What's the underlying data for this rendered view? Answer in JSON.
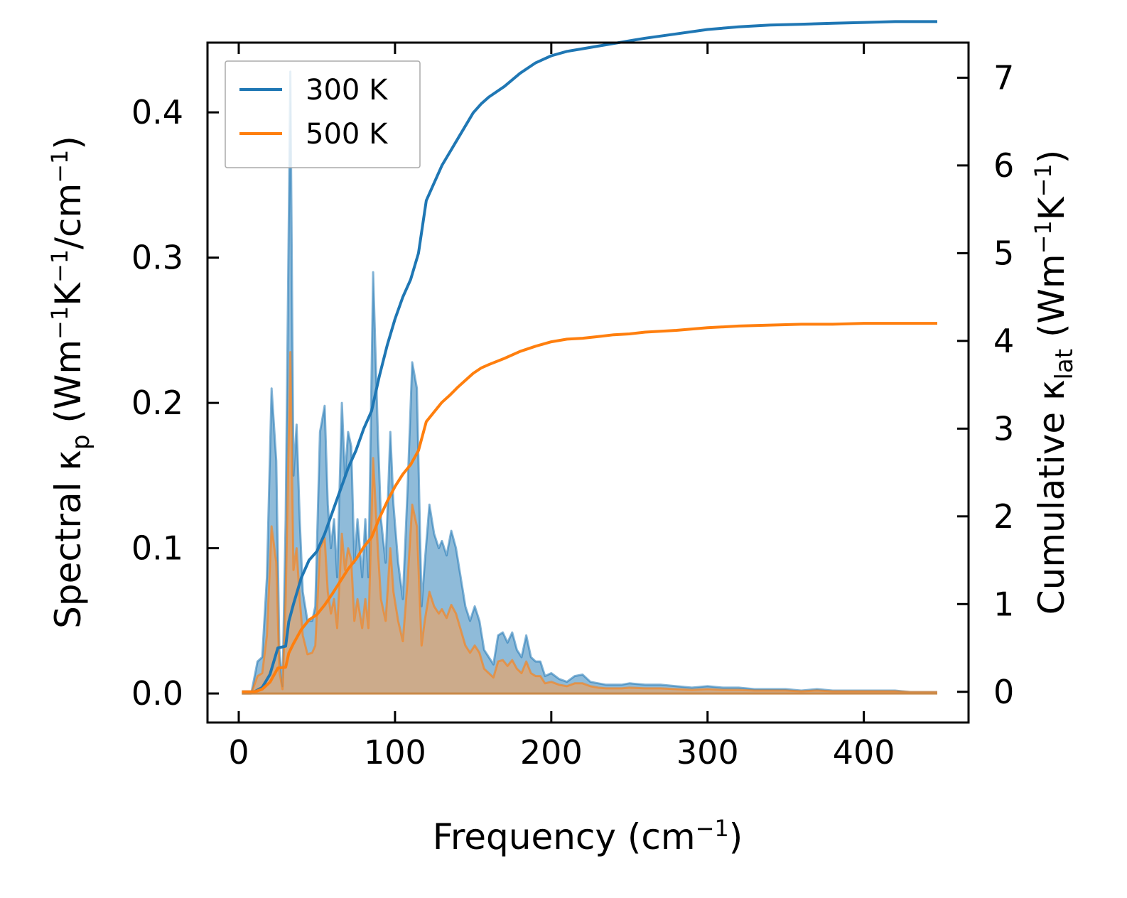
{
  "chart_data": {
    "type": "line",
    "title": "",
    "xlabel": {
      "main": "Frequency (cm",
      "sup": "−1",
      "close": ")"
    },
    "ylabel_left": {
      "pre": "Spectral κ",
      "sub": "p",
      "open": " (Wm",
      "sup1": "−1",
      "mid": "K",
      "sup2": "−1",
      "mid2": "/cm",
      "sup3": "−1",
      "close": ")"
    },
    "ylabel_right": {
      "pre": "Cumulative κ",
      "sub": "lat",
      "open": " (Wm",
      "sup1": "−1",
      "mid": "K",
      "sup2": "−1",
      "close": ")"
    },
    "xlim": [
      -20,
      467
    ],
    "ylim_left": [
      -0.02,
      0.448
    ],
    "ylim_right": [
      -0.35,
      7.4
    ],
    "xticks": [
      0,
      100,
      200,
      300,
      400
    ],
    "xtick_labels": [
      "0",
      "100",
      "200",
      "300",
      "400"
    ],
    "yticks_left": [
      0.0,
      0.1,
      0.2,
      0.3,
      0.4
    ],
    "ytick_labels_left": [
      "0.0",
      "0.1",
      "0.2",
      "0.3",
      "0.4"
    ],
    "yticks_right": [
      0,
      1,
      2,
      3,
      4,
      5,
      6,
      7
    ],
    "ytick_labels_right": [
      "0",
      "1",
      "2",
      "3",
      "4",
      "5",
      "6",
      "7"
    ],
    "legend": {
      "position": "top-left",
      "entries": [
        "300 K",
        "500 K"
      ]
    },
    "colors": {
      "300 K": "#1f77b4",
      "500 K": "#ff7f0e",
      "fill_300": "#1f77b4",
      "fill_500": "#ff9f4a"
    },
    "spectral": {
      "300 K": {
        "x": [
          2,
          8,
          12,
          15,
          18,
          21,
          24,
          26,
          28,
          30,
          33,
          35,
          37,
          39,
          41,
          44,
          47,
          49,
          52,
          55,
          57,
          59,
          61,
          63,
          66,
          68,
          70,
          72,
          74,
          76,
          79,
          81,
          83,
          86,
          89,
          91,
          94,
          97,
          99,
          102,
          105,
          108,
          111,
          114,
          117,
          119,
          122,
          125,
          128,
          130,
          133,
          136,
          139,
          142,
          145,
          148,
          151,
          154,
          157,
          160,
          163,
          166,
          169,
          172,
          175,
          178,
          181,
          184,
          187,
          190,
          193,
          196,
          200,
          205,
          210,
          215,
          220,
          225,
          230,
          235,
          240,
          245,
          250,
          260,
          270,
          280,
          290,
          300,
          310,
          320,
          330,
          340,
          350,
          360,
          370,
          380,
          390,
          400,
          410,
          420,
          430,
          440,
          447
        ],
        "values": [
          0,
          0,
          0.022,
          0.025,
          0.08,
          0.21,
          0.16,
          0.03,
          0.005,
          0.12,
          0.428,
          0.15,
          0.185,
          0.12,
          0.07,
          0.05,
          0.05,
          0.06,
          0.18,
          0.198,
          0.13,
          0.1,
          0.12,
          0.08,
          0.2,
          0.15,
          0.18,
          0.17,
          0.09,
          0.12,
          0.08,
          0.12,
          0.08,
          0.29,
          0.18,
          0.12,
          0.09,
          0.18,
          0.13,
          0.09,
          0.065,
          0.14,
          0.228,
          0.21,
          0.06,
          0.09,
          0.13,
          0.11,
          0.1,
          0.105,
          0.095,
          0.112,
          0.1,
          0.08,
          0.06,
          0.05,
          0.06,
          0.05,
          0.03,
          0.025,
          0.02,
          0.04,
          0.042,
          0.035,
          0.042,
          0.03,
          0.025,
          0.04,
          0.025,
          0.022,
          0.022,
          0.012,
          0.014,
          0.01,
          0.008,
          0.012,
          0.013,
          0.008,
          0.007,
          0.006,
          0.006,
          0.006,
          0.007,
          0.006,
          0.006,
          0.005,
          0.004,
          0.005,
          0.004,
          0.004,
          0.003,
          0.003,
          0.003,
          0.002,
          0.003,
          0.002,
          0.002,
          0.002,
          0.002,
          0.002,
          0.001,
          0.001,
          0.001
        ]
      },
      "500 K": {
        "x": [
          2,
          8,
          12,
          15,
          18,
          21,
          24,
          26,
          28,
          30,
          33,
          35,
          37,
          39,
          41,
          44,
          47,
          49,
          52,
          55,
          57,
          59,
          61,
          63,
          66,
          68,
          70,
          72,
          74,
          76,
          79,
          81,
          83,
          86,
          89,
          91,
          94,
          97,
          99,
          102,
          105,
          108,
          111,
          114,
          117,
          119,
          122,
          125,
          128,
          130,
          133,
          136,
          139,
          142,
          145,
          148,
          151,
          154,
          157,
          160,
          163,
          166,
          169,
          172,
          175,
          178,
          181,
          184,
          187,
          190,
          193,
          196,
          200,
          205,
          210,
          215,
          220,
          225,
          230,
          235,
          240,
          245,
          250,
          260,
          270,
          280,
          290,
          300,
          310,
          320,
          330,
          340,
          350,
          360,
          370,
          380,
          390,
          400,
          410,
          420,
          430,
          440,
          447
        ],
        "values": [
          0,
          0,
          0.012,
          0.014,
          0.04,
          0.115,
          0.09,
          0.015,
          0.003,
          0.065,
          0.235,
          0.085,
          0.1,
          0.065,
          0.04,
          0.027,
          0.028,
          0.033,
          0.1,
          0.107,
          0.07,
          0.055,
          0.065,
          0.045,
          0.11,
          0.085,
          0.1,
          0.092,
          0.05,
          0.065,
          0.045,
          0.065,
          0.045,
          0.162,
          0.1,
          0.065,
          0.05,
          0.1,
          0.07,
          0.05,
          0.036,
          0.077,
          0.13,
          0.115,
          0.033,
          0.05,
          0.07,
          0.06,
          0.055,
          0.058,
          0.052,
          0.061,
          0.055,
          0.044,
          0.033,
          0.028,
          0.033,
          0.028,
          0.017,
          0.014,
          0.011,
          0.022,
          0.023,
          0.019,
          0.023,
          0.017,
          0.014,
          0.022,
          0.014,
          0.012,
          0.012,
          0.007,
          0.008,
          0.006,
          0.005,
          0.007,
          0.007,
          0.005,
          0.004,
          0.0035,
          0.0035,
          0.0035,
          0.004,
          0.0035,
          0.0035,
          0.003,
          0.0025,
          0.003,
          0.0025,
          0.0025,
          0.002,
          0.002,
          0.002,
          0.0015,
          0.002,
          0.0015,
          0.0015,
          0.0015,
          0.0015,
          0.0015,
          0.001,
          0.001,
          0.001
        ]
      }
    },
    "cumulative": {
      "300 K": {
        "x": [
          2,
          10,
          15,
          20,
          25,
          30,
          32,
          35,
          40,
          45,
          50,
          55,
          60,
          65,
          70,
          75,
          80,
          85,
          90,
          95,
          100,
          105,
          110,
          115,
          120,
          125,
          130,
          135,
          140,
          145,
          150,
          155,
          160,
          170,
          180,
          190,
          200,
          210,
          220,
          230,
          240,
          250,
          260,
          280,
          300,
          320,
          340,
          360,
          380,
          400,
          420,
          447
        ],
        "values": [
          0,
          0,
          0.05,
          0.2,
          0.5,
          0.52,
          0.8,
          1.0,
          1.3,
          1.5,
          1.6,
          1.8,
          2.05,
          2.3,
          2.55,
          2.75,
          3.0,
          3.2,
          3.6,
          3.95,
          4.25,
          4.5,
          4.7,
          5.0,
          5.6,
          5.8,
          6.0,
          6.15,
          6.3,
          6.45,
          6.6,
          6.7,
          6.78,
          6.9,
          7.05,
          7.17,
          7.25,
          7.3,
          7.33,
          7.36,
          7.39,
          7.42,
          7.45,
          7.5,
          7.55,
          7.58,
          7.6,
          7.61,
          7.62,
          7.63,
          7.64,
          7.64
        ]
      },
      "500 K": {
        "x": [
          2,
          10,
          15,
          20,
          25,
          30,
          32,
          35,
          40,
          45,
          50,
          55,
          60,
          65,
          70,
          75,
          80,
          85,
          90,
          95,
          100,
          105,
          110,
          115,
          120,
          125,
          130,
          135,
          140,
          145,
          150,
          155,
          160,
          170,
          180,
          190,
          200,
          210,
          220,
          230,
          240,
          250,
          260,
          280,
          300,
          320,
          340,
          360,
          380,
          400,
          420,
          447
        ],
        "values": [
          0,
          0,
          0.03,
          0.11,
          0.27,
          0.28,
          0.44,
          0.55,
          0.71,
          0.82,
          0.88,
          0.99,
          1.12,
          1.26,
          1.4,
          1.51,
          1.65,
          1.76,
          1.98,
          2.17,
          2.34,
          2.48,
          2.59,
          2.75,
          3.08,
          3.19,
          3.3,
          3.38,
          3.47,
          3.55,
          3.63,
          3.69,
          3.73,
          3.8,
          3.88,
          3.94,
          3.99,
          4.02,
          4.03,
          4.05,
          4.07,
          4.08,
          4.1,
          4.12,
          4.15,
          4.17,
          4.18,
          4.19,
          4.19,
          4.2,
          4.2,
          4.2
        ]
      }
    }
  }
}
